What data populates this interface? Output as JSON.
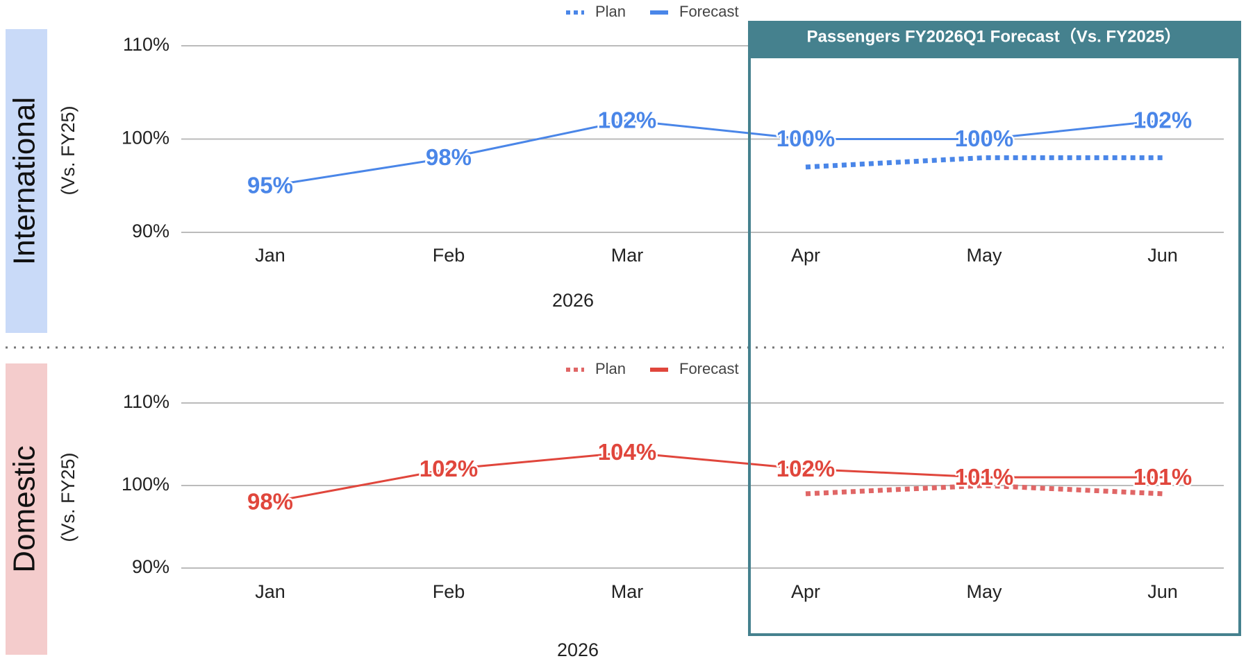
{
  "chart_data": [
    {
      "type": "line",
      "section": "International",
      "ylabel": "(Vs. FY25)",
      "xlabel": "2026",
      "categories": [
        "Jan",
        "Feb",
        "Mar",
        "Apr",
        "May",
        "Jun"
      ],
      "band_color": "#c9daf8",
      "series": [
        {
          "name": "Plan",
          "color": "#4a86e8",
          "dash": true,
          "values": [
            null,
            null,
            null,
            97,
            98,
            98
          ]
        },
        {
          "name": "Forecast",
          "color": "#4a86e8",
          "dash": false,
          "values": [
            95,
            98,
            102,
            100,
            100,
            102
          ],
          "value_labels": [
            "95%",
            "98%",
            "102%",
            "100%",
            "100%",
            "102%"
          ]
        }
      ],
      "ylim": [
        90,
        110
      ],
      "yticks": [
        {
          "value": 90,
          "label": "90%"
        },
        {
          "value": 100,
          "label": "100%"
        },
        {
          "value": 110,
          "label": "110%"
        }
      ],
      "grid": true,
      "legend": "top"
    },
    {
      "type": "line",
      "section": "Domestic",
      "ylabel": "(Vs. FY25)",
      "xlabel": "2026",
      "categories": [
        "Jan",
        "Feb",
        "Mar",
        "Apr",
        "May",
        "Jun"
      ],
      "band_color": "#f4cccc",
      "series": [
        {
          "name": "Plan",
          "color": "#e06666",
          "dash": true,
          "values": [
            null,
            null,
            null,
            99,
            100,
            99
          ]
        },
        {
          "name": "Forecast",
          "color": "#e0463c",
          "dash": false,
          "values": [
            98,
            102,
            104,
            102,
            101,
            101
          ],
          "value_labels": [
            "98%",
            "102%",
            "104%",
            "102%",
            "101%",
            "101%"
          ]
        }
      ],
      "ylim": [
        90,
        110
      ],
      "yticks": [
        {
          "value": 90,
          "label": "90%"
        },
        {
          "value": 100,
          "label": "100%"
        },
        {
          "value": 110,
          "label": "110%"
        }
      ],
      "grid": true,
      "legend": "top"
    }
  ],
  "highlight": {
    "title": "Passengers FY2026Q1 Forecast（Vs. FY2025）"
  }
}
